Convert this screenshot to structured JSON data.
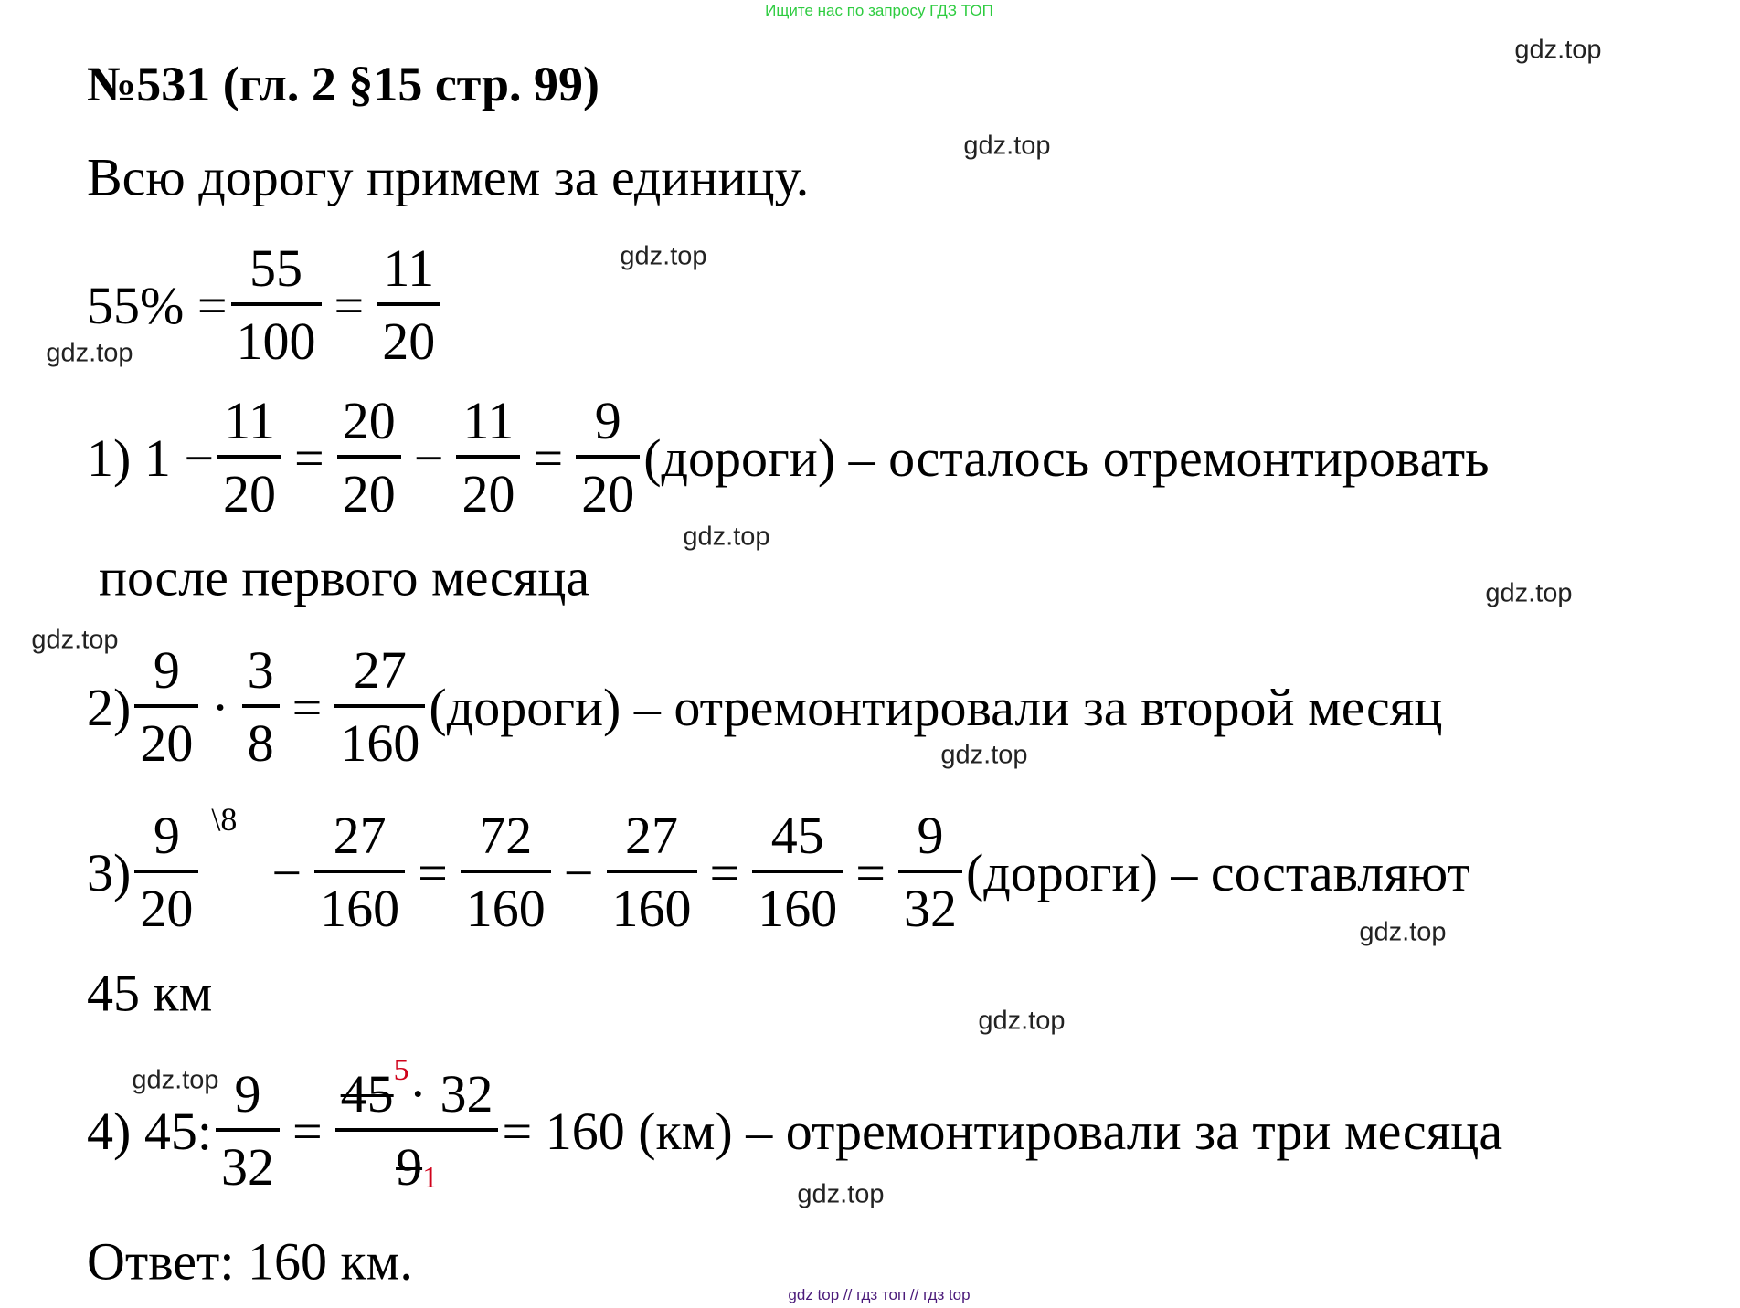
{
  "banner_top": "Ищите нас по запросу ГДЗ ТОП",
  "banner_bottom": "gdz top  //  гдз топ  //  гдз top",
  "title": "№531 (гл. 2 §15 стр. 99)",
  "intro": "Всю дорогу примем за единицу.",
  "watermark": "gdz.top",
  "watermark_count": 12,
  "colors": {
    "banner_top": "#2ecc40",
    "banner_bottom": "#4b1a7a",
    "correction": "#d0021b"
  },
  "lines": [
    {
      "id": "percent",
      "tokens": [
        {
          "t": "text",
          "v": "55% ="
        },
        {
          "t": "frac",
          "n": "55",
          "d": "100"
        },
        {
          "t": "op",
          "v": "="
        },
        {
          "t": "frac",
          "n": "11",
          "d": "20"
        }
      ]
    },
    {
      "id": "step-1",
      "tokens": [
        {
          "t": "text",
          "v": "1) 1 −"
        },
        {
          "t": "frac",
          "n": "11",
          "d": "20"
        },
        {
          "t": "op",
          "v": "="
        },
        {
          "t": "frac",
          "n": "20",
          "d": "20"
        },
        {
          "t": "op",
          "v": "−"
        },
        {
          "t": "frac",
          "n": "11",
          "d": "20"
        },
        {
          "t": "op",
          "v": "="
        },
        {
          "t": "frac",
          "n": "9",
          "d": "20"
        },
        {
          "t": "text",
          "v": " (дороги) – осталось отремонтировать"
        }
      ]
    },
    {
      "id": "step-2",
      "tokens": [
        {
          "t": "text",
          "v": "2)"
        },
        {
          "t": "frac",
          "n": "9",
          "d": "20"
        },
        {
          "t": "op",
          "v": "·"
        },
        {
          "t": "frac",
          "n": "3",
          "d": "8"
        },
        {
          "t": "op",
          "v": "="
        },
        {
          "t": "frac",
          "n": "27",
          "d": "160"
        },
        {
          "t": "text",
          "v": " (дороги) – отремонтировали за второй месяц"
        }
      ]
    },
    {
      "id": "step-3",
      "tokens": [
        {
          "t": "text",
          "v": "3)"
        },
        {
          "t": "frac",
          "n": "9",
          "d": "20"
        },
        {
          "t": "mark",
          "v": "\\8"
        },
        {
          "t": "op",
          "v": "−"
        },
        {
          "t": "frac",
          "n": "27",
          "d": "160"
        },
        {
          "t": "op",
          "v": "="
        },
        {
          "t": "frac",
          "n": "72",
          "d": "160"
        },
        {
          "t": "op",
          "v": "−"
        },
        {
          "t": "frac",
          "n": "27",
          "d": "160"
        },
        {
          "t": "op",
          "v": "="
        },
        {
          "t": "frac",
          "n": "45",
          "d": "160"
        },
        {
          "t": "op",
          "v": "="
        },
        {
          "t": "frac",
          "n": "9",
          "d": "32"
        },
        {
          "t": "text",
          "v": " (дороги) – составляют"
        }
      ]
    },
    {
      "id": "step-4",
      "tokens": [
        {
          "t": "text",
          "v": "4) 45:"
        },
        {
          "t": "frac",
          "n": "9",
          "d": "32"
        },
        {
          "t": "op",
          "v": "="
        },
        {
          "t": "cfrac",
          "n_strike": "45",
          "n_sup": "5",
          "n_rest": " · 32",
          "d_strike": "9",
          "d_sub": "1"
        },
        {
          "t": "text",
          "v": " = 160 (км) – отремонтировали за три месяца"
        }
      ]
    }
  ],
  "continuation_1": "после первого месяца",
  "continuation_3": "45 км",
  "answer": "Ответ: 160 км."
}
